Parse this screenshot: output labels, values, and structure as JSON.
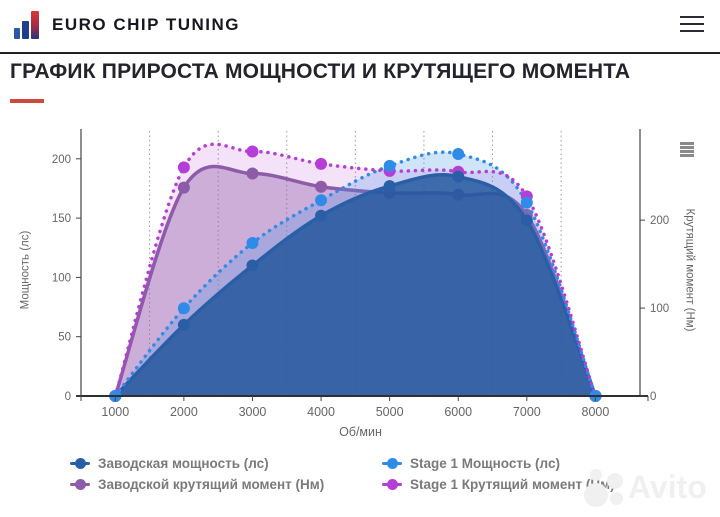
{
  "header": {
    "brand": "EURO CHIP TUNING",
    "icons": {
      "logo": "equalizer-bars-icon",
      "menu": "hamburger-icon"
    }
  },
  "page": {
    "title": "ГРАФИК ПРИРОСТА МОЩНОСТИ И КРУТЯЩЕГО МОМЕНТА",
    "accent_color": "#cf4a3e"
  },
  "chart_data": {
    "type": "area",
    "line_shape": "spline",
    "x": [
      1000,
      2000,
      3000,
      4000,
      5000,
      6000,
      7000,
      8000
    ],
    "xlabel": "Об/мин",
    "ylabel_left": "Мощность (лс)",
    "ylabel_right": "Крутящий момент (Нм)",
    "left_axis": {
      "ticks": [
        0,
        50,
        100,
        150,
        200
      ],
      "max": 215
    },
    "right_axis": {
      "ticks": [
        0,
        100,
        200
      ],
      "max": 290
    },
    "minor_gridlines_x": [
      1500,
      2500,
      3500,
      4500,
      5500,
      6500,
      7500
    ],
    "grid": "vertical-dotted",
    "legend_position": "bottom",
    "legend_columns_order": [
      0,
      2,
      1,
      3
    ],
    "series": [
      {
        "name": "Заводская мощность (лс)",
        "axis": "left",
        "color": "#2a5fa8",
        "fill": "rgba(30,86,155,0.82)",
        "dash": "solid",
        "values": [
          0,
          60,
          110,
          152,
          177,
          185,
          148,
          0
        ]
      },
      {
        "name": "Stage 1 Мощность (лс)",
        "axis": "left",
        "color": "#2e8ce8",
        "fill": "rgba(66,146,232,0.25)",
        "dash": "dot",
        "values": [
          0,
          74,
          129,
          165,
          194,
          204,
          163,
          0
        ]
      },
      {
        "name": "Заводской крутящий момент (Нм)",
        "axis": "right",
        "color": "#8d5ba8",
        "fill": "rgba(146,98,170,0.40)",
        "dash": "solid",
        "values": [
          0,
          237,
          253,
          238,
          231,
          229,
          206,
          0
        ]
      },
      {
        "name": "Stage 1 Крутящий момент (Нм)",
        "axis": "right",
        "color": "#b53fd6",
        "fill": "rgba(187,73,214,0.16)",
        "dash": "dot",
        "values": [
          0,
          260,
          278,
          264,
          256,
          255,
          227,
          0
        ]
      }
    ],
    "chart_menu_icon": "chart-context-menu-icon"
  },
  "watermark": {
    "text": "Avito"
  }
}
